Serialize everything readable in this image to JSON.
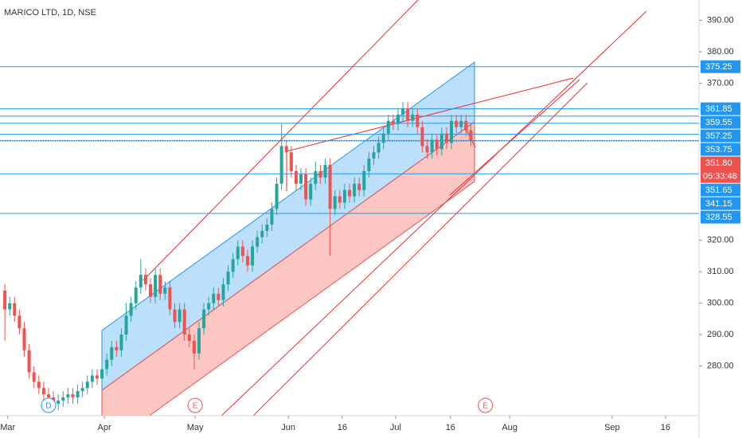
{
  "chart_data": {
    "type": "candlestick",
    "title": "MARICO LTD, 1D, NSE",
    "up_color": "#26a69a",
    "down_color": "#ef5350",
    "level_color": "#2196f3",
    "ohlc": [
      [
        304,
        306,
        288,
        298
      ],
      [
        298,
        302,
        296,
        300
      ],
      [
        300,
        302,
        294,
        296
      ],
      [
        296,
        298,
        290,
        292
      ],
      [
        292,
        294,
        283,
        285
      ],
      [
        285,
        287,
        276,
        278
      ],
      [
        278,
        280,
        273,
        275
      ],
      [
        275,
        277,
        271,
        273
      ],
      [
        273,
        275,
        269,
        271
      ],
      [
        271,
        273,
        268,
        270
      ],
      [
        270,
        272,
        266,
        268
      ],
      [
        268,
        271,
        266,
        269
      ],
      [
        269,
        272,
        267,
        270
      ],
      [
        270,
        273,
        268,
        271
      ],
      [
        271,
        273,
        268,
        270
      ],
      [
        270,
        274,
        268,
        272
      ],
      [
        272,
        275,
        270,
        273
      ],
      [
        273,
        277,
        271,
        275
      ],
      [
        275,
        279,
        273,
        277
      ],
      [
        277,
        279,
        274,
        276
      ],
      [
        276,
        281,
        274,
        279
      ],
      [
        279,
        284,
        277,
        282
      ],
      [
        282,
        288,
        280,
        286
      ],
      [
        286,
        288,
        283,
        285
      ],
      [
        285,
        292,
        283,
        290
      ],
      [
        290,
        300,
        288,
        296
      ],
      [
        296,
        302,
        294,
        300
      ],
      [
        300,
        307,
        298,
        305
      ],
      [
        305,
        314,
        303,
        309
      ],
      [
        309,
        311,
        304,
        306
      ],
      [
        306,
        308,
        300,
        302
      ],
      [
        302,
        311,
        300,
        309
      ],
      [
        309,
        311,
        301,
        303
      ],
      [
        303,
        307,
        301,
        305
      ],
      [
        305,
        307,
        296,
        298
      ],
      [
        298,
        300,
        292,
        294
      ],
      [
        294,
        300,
        292,
        298
      ],
      [
        298,
        300,
        288,
        290
      ],
      [
        290,
        292,
        286,
        288
      ],
      [
        288,
        290,
        279,
        284
      ],
      [
        284,
        294,
        282,
        292
      ],
      [
        292,
        300,
        290,
        298
      ],
      [
        298,
        302,
        296,
        300
      ],
      [
        300,
        305,
        298,
        303
      ],
      [
        303,
        305,
        299,
        301
      ],
      [
        301,
        308,
        299,
        306
      ],
      [
        306,
        312,
        304,
        310
      ],
      [
        310,
        316,
        308,
        314
      ],
      [
        314,
        320,
        312,
        318
      ],
      [
        318,
        320,
        313,
        315
      ],
      [
        315,
        317,
        310,
        312
      ],
      [
        312,
        320,
        310,
        318
      ],
      [
        318,
        323,
        316,
        321
      ],
      [
        321,
        325,
        319,
        323
      ],
      [
        323,
        327,
        321,
        325
      ],
      [
        325,
        332,
        323,
        330
      ],
      [
        330,
        340,
        328,
        338
      ],
      [
        338,
        357,
        336,
        350
      ],
      [
        350,
        352,
        346,
        348
      ],
      [
        348,
        350,
        340,
        342
      ],
      [
        342,
        344,
        336,
        338
      ],
      [
        338,
        343,
        336,
        341
      ],
      [
        341,
        343,
        331,
        333
      ],
      [
        333,
        340,
        331,
        338
      ],
      [
        338,
        345,
        336,
        342
      ],
      [
        342,
        344,
        338,
        340
      ],
      [
        340,
        346,
        338,
        344
      ],
      [
        344,
        346,
        315,
        330
      ],
      [
        330,
        336,
        328,
        334
      ],
      [
        334,
        336,
        330,
        332
      ],
      [
        332,
        338,
        330,
        336
      ],
      [
        336,
        338,
        332,
        334
      ],
      [
        334,
        340,
        332,
        338
      ],
      [
        338,
        340,
        334,
        336
      ],
      [
        336,
        344,
        334,
        342
      ],
      [
        342,
        348,
        340,
        346
      ],
      [
        346,
        350,
        344,
        348
      ],
      [
        348,
        353,
        346,
        351
      ],
      [
        351,
        356,
        349,
        354
      ],
      [
        354,
        360,
        352,
        358
      ],
      [
        358,
        360,
        355,
        357
      ],
      [
        357,
        362,
        355,
        360
      ],
      [
        360,
        364,
        358,
        362
      ],
      [
        362,
        364,
        356,
        358
      ],
      [
        358,
        362,
        356,
        360
      ],
      [
        360,
        362,
        354,
        356
      ],
      [
        356,
        358,
        348,
        350
      ],
      [
        350,
        352,
        346,
        348
      ],
      [
        348,
        354,
        346,
        352
      ],
      [
        352,
        354,
        347,
        349
      ],
      [
        349,
        356,
        347,
        354
      ],
      [
        354,
        356,
        349,
        351
      ],
      [
        351,
        360,
        349,
        358
      ],
      [
        358,
        360,
        354,
        356
      ],
      [
        356,
        360,
        354,
        358
      ],
      [
        358,
        360,
        353,
        355
      ],
      [
        355,
        357,
        350,
        351.8
      ]
    ],
    "xlim": [
      -1,
      143
    ],
    "xticks": [
      {
        "value": 0.6,
        "label": "Mar"
      },
      {
        "value": 20.5,
        "label": "Apr"
      },
      {
        "value": 39.2,
        "label": "May"
      },
      {
        "value": 58.4,
        "label": "Jun"
      },
      {
        "value": 69.5,
        "label": "16"
      },
      {
        "value": 80.5,
        "label": "Jul"
      },
      {
        "value": 91.8,
        "label": "16"
      },
      {
        "value": 104,
        "label": "Aug"
      },
      {
        "value": 125.1,
        "label": "Sep"
      },
      {
        "value": 136.1,
        "label": "16"
      }
    ],
    "ylim": [
      391.1,
      269.2
    ],
    "yticks": [
      {
        "value": 390,
        "label": "390.00"
      },
      {
        "value": 380,
        "label": "380.00"
      },
      {
        "value": 370,
        "label": "370.00"
      },
      {
        "value": 320,
        "label": "320.00"
      },
      {
        "value": 310,
        "label": "310.00"
      },
      {
        "value": 300,
        "label": "300.00"
      },
      {
        "value": 290,
        "label": "290.00"
      },
      {
        "value": 280,
        "label": "280.00"
      }
    ],
    "levels": [
      375.25,
      361.85,
      359.55,
      357.25,
      353.75,
      351.65,
      341.15,
      328.55
    ],
    "last_price": {
      "value": 351.8,
      "label": "351.80"
    },
    "countdown": "05:33:48",
    "events": [
      {
        "label": "D",
        "x": 9,
        "color": "#2196f3"
      },
      {
        "label": "E",
        "x": 39.2,
        "color": "#ef5350"
      },
      {
        "label": "E",
        "x": 99,
        "color": "#ef5350"
      }
    ]
  }
}
